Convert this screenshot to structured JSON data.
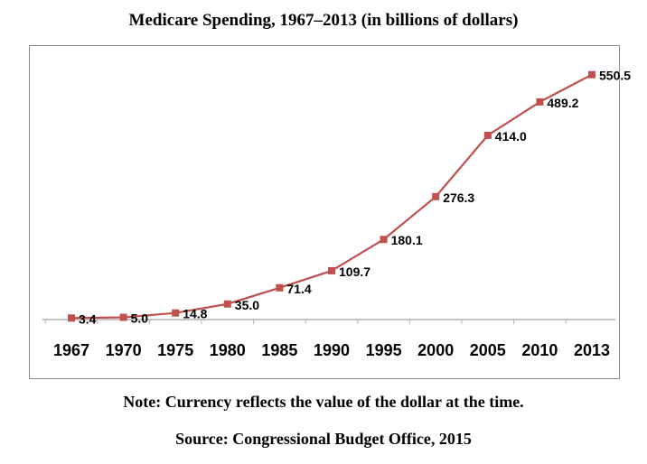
{
  "chart_data": {
    "type": "line",
    "title": "Medicare Spending, 1967–2013 (in billions of dollars)",
    "xlabel": "",
    "ylabel": "",
    "categories": [
      "1967",
      "1970",
      "1975",
      "1980",
      "1985",
      "1990",
      "1995",
      "2000",
      "2005",
      "2010",
      "2013"
    ],
    "series": [
      {
        "name": "Medicare Spending",
        "values": [
          3.4,
          5.0,
          14.8,
          35.0,
          71.4,
          109.7,
          180.1,
          276.3,
          414.0,
          489.2,
          550.5
        ],
        "labels": [
          "3.4",
          "5.0",
          "14.8",
          "35.0",
          "71.4",
          "109.7",
          "180.1",
          "276.3",
          "414.0",
          "489.2",
          "550.5"
        ],
        "color": "#c0504d"
      }
    ],
    "ylim": [
      0,
      560
    ],
    "grid": false,
    "legend": "none"
  },
  "notes": {
    "currency": "Note: Currency reflects the value of the dollar at the time.",
    "source": "Source:  Congressional Budget Office, 2015"
  },
  "colors": {
    "line": "#c0504d",
    "marker": "#c0504d",
    "axis": "#b3b3b3",
    "frame": "#8c8c8c"
  }
}
